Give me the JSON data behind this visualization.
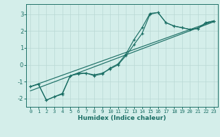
{
  "xlabel": "Humidex (Indice chaleur)",
  "background_color": "#d4eeea",
  "grid_color": "#b8d8d4",
  "line_color": "#1a6e64",
  "xlim": [
    -0.5,
    23.5
  ],
  "ylim": [
    -2.5,
    3.6
  ],
  "xticks": [
    0,
    1,
    2,
    3,
    4,
    5,
    6,
    7,
    8,
    9,
    10,
    11,
    12,
    13,
    14,
    15,
    16,
    17,
    18,
    19,
    20,
    21,
    22,
    23
  ],
  "yticks": [
    -2,
    -1,
    0,
    1,
    2,
    3
  ],
  "line1_x": [
    0,
    1,
    2,
    3,
    4,
    5,
    6,
    7,
    8,
    9,
    10,
    11,
    12,
    13,
    14,
    15,
    16,
    17,
    18,
    19,
    20,
    21,
    22,
    23
  ],
  "line1_y": [
    -1.3,
    -1.15,
    -2.1,
    -1.9,
    -1.75,
    -0.65,
    -0.5,
    -0.5,
    -0.65,
    -0.55,
    -0.2,
    0.05,
    0.65,
    1.5,
    2.2,
    3.05,
    3.1,
    2.5,
    2.3,
    2.2,
    2.1,
    2.15,
    2.5,
    2.6
  ],
  "line2_x": [
    0,
    1,
    2,
    3,
    4,
    5,
    6,
    7,
    8,
    9,
    10,
    11,
    12,
    13,
    14,
    15,
    16,
    17,
    18,
    19,
    20,
    21,
    22,
    23
  ],
  "line2_y": [
    -1.3,
    -1.15,
    -2.1,
    -1.9,
    -1.7,
    -0.65,
    -0.55,
    -0.5,
    -0.6,
    -0.5,
    -0.25,
    0.0,
    0.55,
    1.2,
    1.85,
    3.0,
    3.1,
    2.5,
    2.3,
    2.2,
    2.1,
    2.15,
    2.5,
    2.6
  ],
  "line3_x": [
    0,
    23
  ],
  "line3_y": [
    -1.3,
    2.6
  ],
  "line4_x": [
    0,
    23
  ],
  "line4_y": [
    -1.55,
    2.55
  ]
}
